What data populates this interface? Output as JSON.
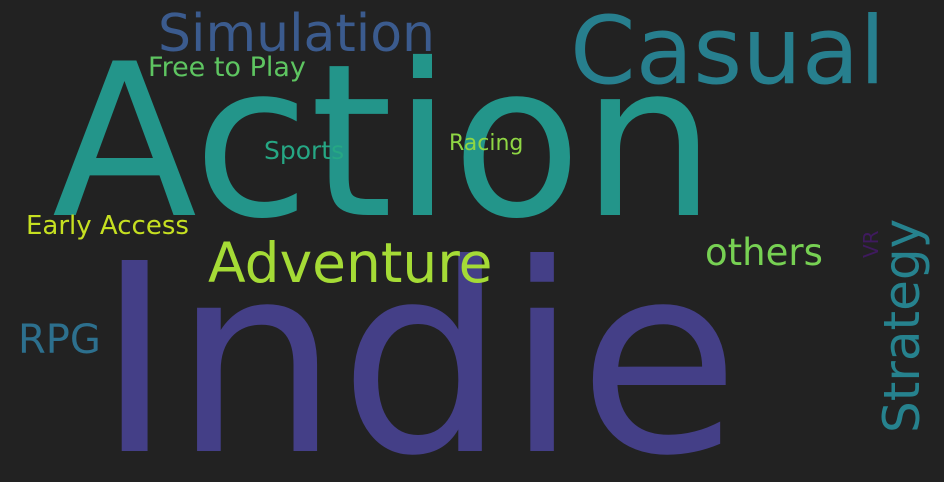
{
  "words": [
    {
      "text": "Indie",
      "color": "#443f87"
    },
    {
      "text": "Action",
      "color": "#23958a"
    },
    {
      "text": "Casual",
      "color": "#277f8e"
    },
    {
      "text": "Simulation",
      "color": "#3b5b8e"
    },
    {
      "text": "Free to Play",
      "color": "#5ec561"
    },
    {
      "text": "Adventure",
      "color": "#a5db36"
    },
    {
      "text": "Strategy",
      "color": "#26828e"
    },
    {
      "text": "others",
      "color": "#77d153"
    },
    {
      "text": "Sports",
      "color": "#26a784"
    },
    {
      "text": "Racing",
      "color": "#8fd744"
    },
    {
      "text": "Early Access",
      "color": "#c6e021"
    },
    {
      "text": "RPG",
      "color": "#2d708e"
    },
    {
      "text": "VR",
      "color": "#3f1a5e"
    }
  ],
  "background_color": "#222222"
}
